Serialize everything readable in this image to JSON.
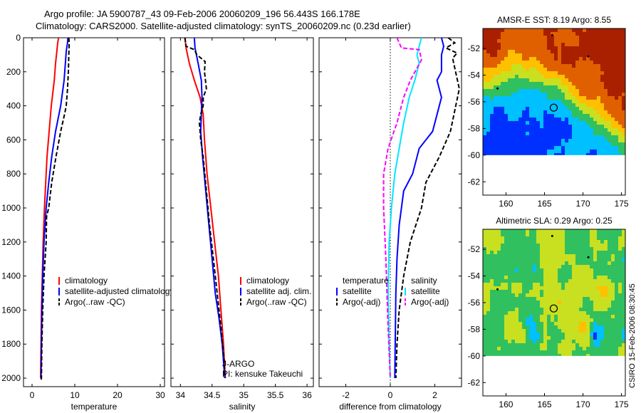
{
  "header": {
    "line1": "Argo profile: JA 5900787_43 09-Feb-2006 20060209_196 56.443S 166.178E",
    "line2": "Climatology: CARS2000. Satellite-adjusted climatology: synTS_20060209.nc (0.23d earlier)"
  },
  "stamp": "CSIRO 15-Feb-2006 08:30:45",
  "colors": {
    "climatology": "#ff0000",
    "satellite": "#0000ff",
    "argo": "#000000",
    "temperature_diff": "#00e6ff",
    "salinity_diff": "#ff00ff",
    "dotted": "#000000"
  },
  "chart_data": [
    {
      "type": "line",
      "id": "temperature",
      "xlabel": "temperature",
      "ylabel": "",
      "xlim": [
        -2,
        31
      ],
      "ylim": [
        2050,
        0
      ],
      "xticks": [
        0,
        10,
        20,
        30
      ],
      "yticks": [
        0,
        200,
        400,
        600,
        800,
        1000,
        1200,
        1400,
        1600,
        1800,
        2000
      ],
      "legend": {
        "position": "lower-right",
        "entries": [
          "climatology",
          "satellite-adjusted climatology",
          "Argo(..raw -QC)"
        ]
      },
      "series": [
        {
          "name": "climatology",
          "style": "solid",
          "color": "#ff0000",
          "x": [
            6.2,
            6.0,
            5.8,
            5.5,
            5.2,
            4.5,
            4.0,
            3.5,
            3.2,
            2.9,
            2.6,
            2.4,
            2.2,
            2.1,
            2.0
          ],
          "y": [
            0,
            30,
            80,
            150,
            250,
            400,
            550,
            700,
            850,
            1000,
            1200,
            1400,
            1600,
            1800,
            2000
          ]
        },
        {
          "name": "satellite-adjusted climatology",
          "style": "solid",
          "color": "#0000ff",
          "x": [
            8.4,
            8.3,
            8.0,
            7.8,
            7.5,
            6.7,
            5.5,
            4.6,
            3.9,
            3.3,
            2.8,
            2.5,
            2.3,
            2.2,
            2.1
          ],
          "y": [
            0,
            30,
            80,
            150,
            250,
            400,
            550,
            700,
            850,
            1000,
            1200,
            1400,
            1600,
            1800,
            2000
          ]
        },
        {
          "name": "Argo(..raw -QC)",
          "style": "dashed",
          "color": "#000000",
          "x": [
            8.6,
            8.7,
            8.6,
            8.5,
            8.3,
            8.0,
            7.6,
            6.7,
            5.6,
            4.6,
            3.9,
            3.4,
            3.3,
            2.8,
            2.5,
            2.3,
            2.2,
            2.1
          ],
          "y": [
            0,
            30,
            100,
            200,
            300,
            400,
            450,
            550,
            700,
            850,
            1000,
            1050,
            1200,
            1400,
            1600,
            1800,
            2000,
            2010
          ]
        }
      ]
    },
    {
      "type": "line",
      "id": "salinity",
      "xlabel": "salinity",
      "ylabel": "",
      "xlim": [
        33.85,
        36.1
      ],
      "ylim": [
        2050,
        0
      ],
      "xticks": [
        34,
        34.5,
        35,
        35.5,
        36
      ],
      "xtick_labels": [
        "34",
        "34.5",
        "35",
        "35.5",
        "36"
      ],
      "legend": {
        "position": "lower-right",
        "entries": [
          "climatology",
          "satellite adj. clim.",
          "Argo(..raw -QC)"
        ]
      },
      "annotations": [
        "J-ARGO",
        "PI: kensuke Takeuchi"
      ],
      "series": [
        {
          "name": "climatology",
          "style": "solid",
          "color": "#ff0000",
          "x": [
            34.07,
            34.09,
            34.14,
            34.22,
            34.31,
            34.36,
            34.38,
            34.42,
            34.48,
            34.54,
            34.6,
            34.64,
            34.68,
            34.7,
            34.71
          ],
          "y": [
            0,
            60,
            150,
            250,
            350,
            450,
            600,
            800,
            1000,
            1200,
            1400,
            1600,
            1800,
            1950,
            2000
          ]
        },
        {
          "name": "satellite adj. clim.",
          "style": "solid",
          "color": "#0000ff",
          "x": [
            34.22,
            34.23,
            34.28,
            34.33,
            34.34,
            34.33,
            34.32,
            34.35,
            34.4,
            34.45,
            34.5,
            34.55,
            34.61,
            34.66,
            34.69,
            34.7
          ],
          "y": [
            0,
            60,
            150,
            250,
            350,
            450,
            550,
            700,
            900,
            1100,
            1300,
            1500,
            1650,
            1800,
            1950,
            2000
          ]
        },
        {
          "name": "Argo(..raw -QC)",
          "style": "dashed",
          "color": "#000000",
          "x": [
            34.07,
            34.09,
            34.22,
            34.26,
            34.39,
            34.38,
            34.41,
            34.36,
            34.36,
            34.32,
            34.3,
            34.32,
            34.36,
            34.41,
            34.46,
            34.52,
            34.58,
            34.64,
            34.69,
            34.71
          ],
          "y": [
            0,
            50,
            70,
            100,
            140,
            200,
            300,
            350,
            400,
            450,
            500,
            600,
            700,
            900,
            1100,
            1300,
            1500,
            1700,
            1900,
            2000
          ]
        }
      ]
    },
    {
      "type": "line",
      "id": "difference",
      "xlabel": "difference from climatology",
      "ylabel": "",
      "xlim": [
        -3.2,
        3.2
      ],
      "ylim": [
        2050,
        0
      ],
      "xticks": [
        -2,
        0,
        2
      ],
      "reference_line": {
        "x": 0,
        "style": "dotted"
      },
      "legend": {
        "position": "lower-right",
        "groups": [
          {
            "title": "temperature",
            "entries": [
              "satellite",
              "Argo(-adj)"
            ]
          },
          {
            "title": "salinity",
            "entries": [
              "satellite",
              "Argo(-adj)"
            ]
          }
        ]
      },
      "series": [
        {
          "name": "temperature satellite",
          "style": "solid",
          "color": "#0000ff",
          "x": [
            2.3,
            2.4,
            2.3,
            2.3,
            2.1,
            2.3,
            1.9,
            1.3,
            1.0,
            0.6,
            0.4,
            0.3,
            0.25,
            0.22,
            0.2
          ],
          "y": [
            0,
            50,
            100,
            200,
            250,
            350,
            550,
            650,
            800,
            900,
            1100,
            1300,
            1500,
            1800,
            2000
          ]
        },
        {
          "name": "temperature Argo(-adj)",
          "style": "dashed",
          "color": "#000000",
          "x": [
            2.6,
            2.9,
            2.5,
            3.0,
            2.8,
            3.1,
            2.7,
            2.2,
            1.6,
            1.4,
            0.9,
            0.6,
            0.4,
            0.3,
            0.25
          ],
          "y": [
            0,
            30,
            60,
            90,
            120,
            300,
            550,
            700,
            850,
            1000,
            1200,
            1400,
            1600,
            1800,
            2000
          ]
        },
        {
          "name": "salinity satellite",
          "style": "solid",
          "color": "#00e6ff",
          "x": [
            1.4,
            1.3,
            1.2,
            1.3,
            1.1,
            0.85,
            0.6,
            0.4,
            0.2,
            0.05,
            -0.05,
            -0.1,
            -0.05,
            0.0
          ],
          "y": [
            0,
            50,
            100,
            150,
            250,
            350,
            500,
            650,
            800,
            1000,
            1200,
            1500,
            1800,
            2000
          ]
        },
        {
          "name": "salinity Argo(-adj)",
          "style": "dashed",
          "color": "#ff00ff",
          "x": [
            0.3,
            0.5,
            1.3,
            1.4,
            0.9,
            0.6,
            0.5,
            0.3,
            -0.1,
            -0.3,
            -0.3,
            -0.2,
            -0.1,
            0.0
          ],
          "y": [
            0,
            60,
            70,
            130,
            250,
            350,
            400,
            500,
            650,
            800,
            1000,
            1300,
            1700,
            2000
          ]
        }
      ]
    },
    {
      "type": "heatmap",
      "id": "sst-map",
      "title": "AMSR-E SST: 8.19 Argo: 8.55",
      "xlim": [
        157,
        175.5
      ],
      "ylim": [
        -63,
        -50.5
      ],
      "xticks": [
        160,
        165,
        170,
        175
      ],
      "yticks": [
        -52,
        -54,
        -56,
        -58,
        -60,
        -62
      ],
      "data_lat_min": -60,
      "profile_marker": {
        "lon": 166.2,
        "lat": -56.44
      },
      "colors": [
        "#0030ff",
        "#00c0ff",
        "#30c060",
        "#c8e020",
        "#ffc000",
        "#e06000",
        "#a82000"
      ]
    },
    {
      "type": "heatmap",
      "id": "sla-map",
      "title": "Altimetric SLA: 0.29 Argo: 0.25",
      "xlim": [
        157,
        175.5
      ],
      "ylim": [
        -63,
        -50.5
      ],
      "xticks": [
        160,
        165,
        170,
        175
      ],
      "yticks": [
        -52,
        -54,
        -56,
        -58,
        -60,
        -62
      ],
      "data_lat_min": -60,
      "profile_marker": {
        "lon": 166.2,
        "lat": -56.44
      },
      "colors": [
        "#0030ff",
        "#00c0ff",
        "#30c060",
        "#c8e020",
        "#ffc000",
        "#e06000",
        "#a82000"
      ]
    }
  ]
}
